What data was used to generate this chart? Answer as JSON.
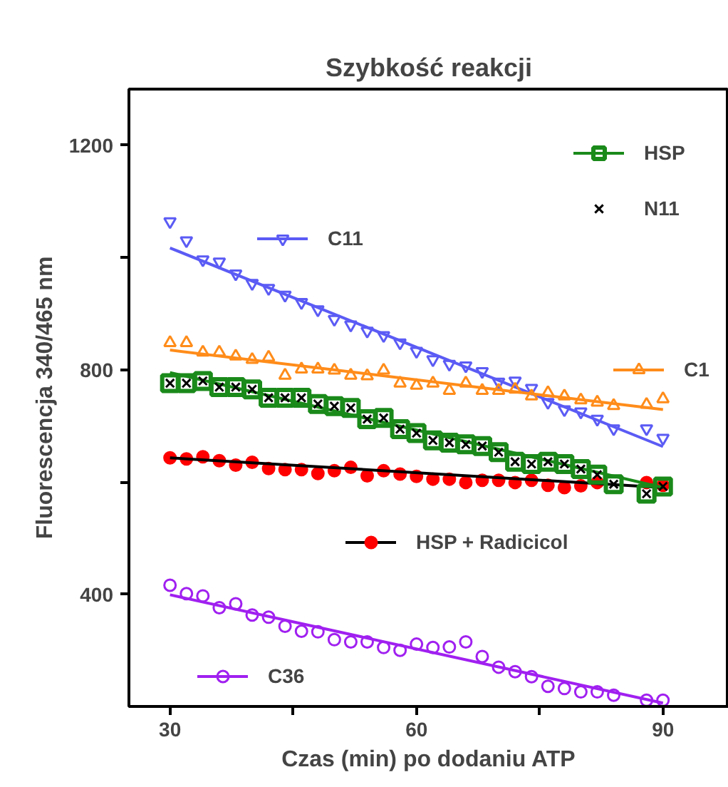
{
  "chart_data": {
    "type": "scatter",
    "title": "Szybkość reakcji",
    "xlabel": "Czas (min) po dodaniu ATP",
    "ylabel": "Fluorescencja 340/465 nm",
    "xlim": [
      25,
      98
    ],
    "ylim": [
      200,
      1300
    ],
    "xticks": [
      30,
      {
        "value": 45,
        "label": null
      },
      60,
      {
        "value": 75,
        "label": null
      },
      90
    ],
    "yticks": [
      400,
      {
        "value": 600,
        "label": null
      },
      800,
      {
        "value": 1000,
        "label": null
      },
      1200
    ],
    "grid": false,
    "legend": "right",
    "series": [
      {
        "name": "C11",
        "color": "#5b5bf5",
        "marker": "triangle_down",
        "x": [
          30,
          32,
          34,
          36,
          38,
          40,
          42,
          44,
          46,
          48,
          50,
          52,
          54,
          56,
          58,
          60,
          62,
          64,
          66,
          68,
          70,
          72,
          74,
          76,
          78,
          80,
          82,
          84,
          88,
          90
        ],
        "values": [
          1064,
          1030,
          996,
          992,
          971,
          954,
          945,
          933,
          920,
          907,
          890,
          880,
          869,
          861,
          848,
          833,
          818,
          810,
          807,
          797,
          778,
          780,
          767,
          742,
          729,
          725,
          712,
          695,
          695,
          678
        ]
      },
      {
        "type": "line",
        "color": "#5b5bf5",
        "x": [
          30,
          90
        ],
        "values": [
          1017,
          663
        ]
      },
      {
        "name": "C1",
        "color": "#ff8c1a",
        "marker": "triangle",
        "x": [
          30,
          32,
          34,
          36,
          38,
          40,
          42,
          44,
          46,
          48,
          50,
          52,
          54,
          56,
          58,
          60,
          62,
          64,
          66,
          68,
          70,
          72,
          74,
          76,
          78,
          80,
          82,
          84,
          88,
          90
        ],
        "values": [
          848,
          848,
          831,
          831,
          824,
          818,
          822,
          790,
          801,
          801,
          799,
          790,
          789,
          799,
          776,
          772,
          776,
          763,
          776,
          763,
          763,
          765,
          753,
          759,
          753,
          746,
          742,
          736,
          738,
          748
        ]
      },
      {
        "type": "line",
        "color": "#ff8c1a",
        "x": [
          30,
          90
        ],
        "values": [
          835,
          729
        ]
      },
      {
        "name": "HSP + Radicicol",
        "color": "#ff0000",
        "marker": "circle",
        "x": [
          30,
          32,
          34,
          36,
          38,
          40,
          42,
          44,
          46,
          48,
          50,
          52,
          54,
          56,
          58,
          60,
          62,
          64,
          66,
          68,
          70,
          72,
          74,
          76,
          78,
          80,
          82,
          88,
          90
        ],
        "values": [
          643,
          641,
          645,
          638,
          630,
          635,
          624,
          622,
          622,
          615,
          620,
          626,
          611,
          620,
          614,
          610,
          605,
          605,
          599,
          603,
          603,
          599,
          603,
          594,
          590,
          593,
          599,
          599,
          594
        ]
      },
      {
        "type": "line",
        "color": "#000000",
        "x": [
          30,
          90
        ],
        "values": [
          643,
          590
        ]
      },
      {
        "name": "HSP",
        "color": "#1a8a1a",
        "marker": "square",
        "x": [
          30,
          32,
          34,
          36,
          38,
          40,
          42,
          44,
          46,
          48,
          50,
          52,
          54,
          56,
          58,
          60,
          62,
          64,
          66,
          68,
          70,
          72,
          74,
          76,
          78,
          80,
          82,
          84,
          88,
          90
        ],
        "values": [
          776,
          776,
          780,
          769,
          769,
          765,
          750,
          750,
          750,
          739,
          735,
          732,
          712,
          714,
          694,
          687,
          674,
          670,
          667,
          664,
          653,
          636,
          632,
          636,
          632,
          623,
          613,
          596,
          579,
          592
        ]
      },
      {
        "type": "line",
        "color": "#1a8a1a",
        "x": [
          30,
          90
        ],
        "values": [
          795,
          590
        ]
      },
      {
        "name": "N11",
        "color": "#000000",
        "marker": "cross",
        "x": [
          30,
          32,
          34,
          36,
          38,
          40,
          42,
          44,
          46,
          48,
          50,
          52,
          54,
          56,
          58,
          60,
          62,
          64,
          66,
          68,
          70,
          72,
          74,
          76,
          78,
          80,
          82,
          84,
          88,
          90
        ],
        "values": [
          776,
          776,
          780,
          769,
          769,
          765,
          750,
          750,
          750,
          739,
          735,
          732,
          712,
          714,
          694,
          687,
          674,
          670,
          667,
          664,
          653,
          636,
          632,
          636,
          632,
          623,
          613,
          596,
          579,
          592
        ]
      },
      {
        "name": "C36",
        "color": "#a020f0",
        "marker": "circle",
        "x": [
          30,
          32,
          34,
          36,
          38,
          40,
          42,
          44,
          46,
          48,
          50,
          52,
          54,
          56,
          58,
          60,
          62,
          64,
          66,
          68,
          70,
          72,
          74,
          76,
          78,
          80,
          82,
          84,
          88,
          90
        ],
        "values": [
          416,
          401,
          397,
          376,
          383,
          363,
          359,
          343,
          334,
          333,
          319,
          315,
          315,
          305,
          300,
          311,
          305,
          306,
          315,
          289,
          270,
          262,
          253,
          236,
          232,
          226,
          226,
          220,
          211,
          211
        ]
      },
      {
        "type": "line",
        "color": "#a020f0",
        "x": [
          30,
          90
        ],
        "values": [
          399,
          206
        ]
      }
    ]
  }
}
